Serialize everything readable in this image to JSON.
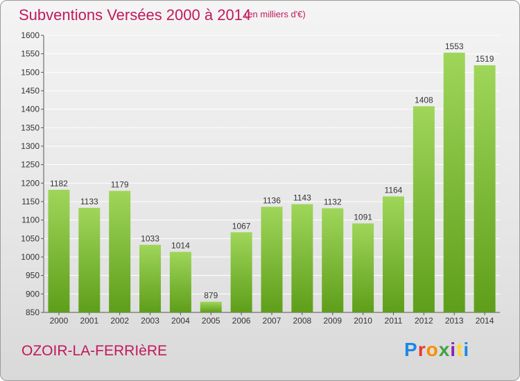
{
  "header": {
    "title": "Subventions Versées 2000 à 2014",
    "subtitle": "(en milliers d'€)"
  },
  "footer": {
    "commune": "OZOIR-LA-FERRIèRE",
    "logo": "Proxiti",
    "logo_colors": [
      "#1e88e5",
      "#e53935",
      "#fb8c00",
      "#43a047",
      "#8e24aa",
      "#fdd835",
      "#1e88e5"
    ]
  },
  "colors": {
    "bar_light": "#9fd65a",
    "bar_dark": "#5e9e1a",
    "title": "#c2185b",
    "grid": "#ffffff"
  },
  "chart_data": {
    "type": "bar",
    "title": "Subventions Versées 2000 à 2014",
    "subtitle": "(en milliers d'€)",
    "xlabel": "",
    "ylabel": "",
    "categories": [
      "2000",
      "2001",
      "2002",
      "2003",
      "2004",
      "2005",
      "2006",
      "2007",
      "2008",
      "2009",
      "2010",
      "2011",
      "2012",
      "2013",
      "2014"
    ],
    "values": [
      1182,
      1133,
      1179,
      1033,
      1014,
      879,
      1067,
      1136,
      1143,
      1132,
      1091,
      1164,
      1408,
      1553,
      1519
    ],
    "ylim": [
      850,
      1600
    ],
    "yticks": [
      850,
      900,
      950,
      1000,
      1050,
      1100,
      1150,
      1200,
      1250,
      1300,
      1350,
      1400,
      1450,
      1500,
      1550,
      1600
    ],
    "grid": true,
    "data_labels": true
  }
}
